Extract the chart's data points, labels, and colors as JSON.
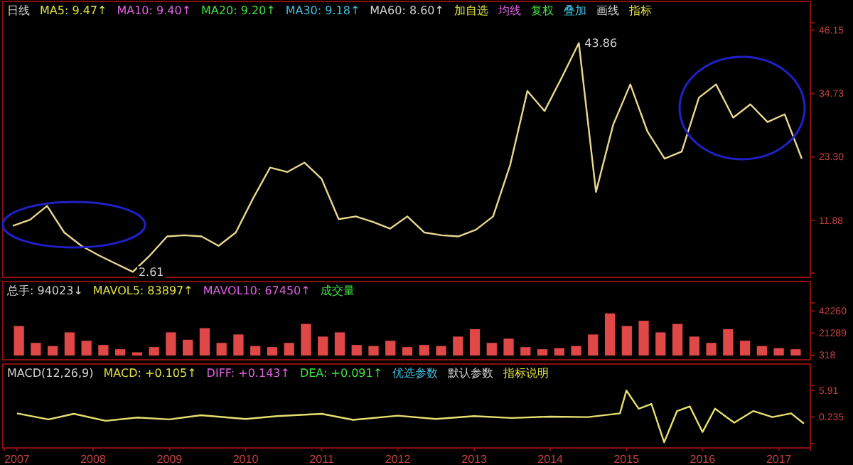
{
  "chart_data": [
    {
      "type": "line",
      "annotations": [
        "日线",
        "MA5: 9.47↑",
        "MA10: 9.40↑",
        "MA20: 9.20↑",
        "MA30: 9.18↑",
        "MA60: 8.60↑",
        "加自选",
        "均线",
        "复权",
        "叠加",
        "画线",
        "指标",
        {
          "text": "43.86",
          "y": 43.86
        },
        {
          "text": "2.61",
          "y": 2.61
        }
      ],
      "categories": [
        null,
        null,
        null,
        null,
        null,
        null,
        null,
        null,
        null,
        null,
        null,
        null,
        null,
        null,
        null,
        null,
        null,
        null,
        null,
        null,
        null,
        null,
        null,
        null,
        null,
        null,
        null,
        null,
        null,
        null,
        null,
        null,
        null,
        null,
        null,
        null,
        null,
        null,
        null,
        null,
        null,
        null,
        null,
        null,
        null,
        null,
        null
      ],
      "series": [
        {
          "color": "#e8d890",
          "values": [
            10.9,
            12.0,
            14.5,
            9.7,
            7.3,
            5.6,
            4.1,
            2.61,
            5.6,
            9.0,
            9.2,
            9.0,
            7.3,
            9.7,
            15.8,
            21.4,
            20.6,
            22.3,
            19.4,
            12.1,
            12.6,
            11.6,
            10.4,
            12.6,
            9.7,
            9.2,
            9.0,
            10.2,
            12.6,
            21.9,
            35.2,
            31.6,
            37.6,
            43.86,
            17.0,
            29.1,
            36.4,
            27.9,
            23.0,
            24.3,
            34.0,
            36.4,
            30.4,
            32.8,
            29.6,
            31.0,
            23.0
          ]
        }
      ],
      "ylim": [
        2.4,
        47.5
      ],
      "yticks": [
        11.88,
        {
          "value": 23.3,
          "label": "23.30"
        },
        34.73,
        46.15
      ],
      "tick_labels": "y",
      "grid": false
    },
    {
      "type": "bar",
      "annotations": [
        "总手: 94023↓",
        "MAVOL5: 83897↑",
        "MAVOL10: 67450↑",
        "成交量"
      ],
      "categories": [
        null,
        null,
        null,
        null,
        null,
        null,
        null,
        null,
        null,
        null,
        null,
        null,
        null,
        null,
        null,
        null,
        null,
        null,
        null,
        null,
        null,
        null,
        null,
        null,
        null,
        null,
        null,
        null,
        null,
        null,
        null,
        null,
        null,
        null,
        null,
        null,
        null,
        null,
        null,
        null,
        null,
        null,
        null,
        null,
        null,
        null,
        null
      ],
      "series": [
        {
          "color": "#e04848",
          "values": [
            28000,
            12000,
            9000,
            22000,
            14000,
            10000,
            6000,
            3000,
            8000,
            22000,
            15000,
            26000,
            12000,
            20000,
            9000,
            8000,
            12000,
            30000,
            18000,
            22000,
            10000,
            9000,
            14000,
            8000,
            10000,
            9000,
            18000,
            25000,
            12000,
            16000,
            8000,
            6000,
            7000,
            9000,
            20000,
            40000,
            28000,
            33000,
            22000,
            30000,
            18000,
            12000,
            25000,
            14000,
            9000,
            7000,
            6000
          ]
        }
      ],
      "ylim": [
        0,
        50000
      ],
      "yticks": [
        318,
        21289,
        42260
      ],
      "tick_labels": "y",
      "grid": false
    },
    {
      "type": "line",
      "annotations": [
        "MACD(12,26,9)",
        "MACD: +0.105↑",
        "DIFF: +0.143↑",
        "DEA: +0.091↑",
        "优选参数",
        "默认参数",
        "指标说明"
      ],
      "x": [
        "2007-01",
        "2007-06",
        "2007-10",
        "2008-03",
        "2008-08",
        "2009-01",
        "2009-06",
        "2010-01",
        "2010-06",
        "2011-01",
        "2011-06",
        "2012-01",
        "2012-07",
        "2013-01",
        "2013-07",
        "2014-01",
        "2014-07",
        "2014-12",
        "2015-01",
        "2015-03",
        "2015-05",
        "2015-07",
        "2015-09",
        "2015-11",
        "2016-01",
        "2016-03",
        "2016-06",
        "2016-09",
        "2016-12",
        "2017-03",
        "2017-05"
      ],
      "series": [
        {
          "color": "#e8e070",
          "values": [
            1.0,
            -0.3,
            0.9,
            -0.6,
            0.1,
            -0.3,
            0.6,
            -0.2,
            0.4,
            0.9,
            -0.4,
            0.5,
            -0.2,
            0.4,
            0.0,
            0.3,
            0.2,
            1.0,
            5.9,
            2.0,
            3.0,
            -5.2,
            1.5,
            2.5,
            -3.0,
            2.0,
            -1.0,
            1.5,
            0.2,
            1.0,
            -1.2
          ]
        }
      ],
      "xlim": [
        "2006-11",
        "2017-06"
      ],
      "ylim": [
        -5.5,
        7
      ],
      "xticks": [
        "2007",
        "2008",
        "2009",
        "2010",
        "2011",
        "2012",
        "2013",
        "2014",
        "2015",
        "2016",
        "2017"
      ],
      "yticks": [
        5.91,
        {
          "value": 0.235,
          "label": "0.235"
        }
      ],
      "grid": false
    }
  ]
}
